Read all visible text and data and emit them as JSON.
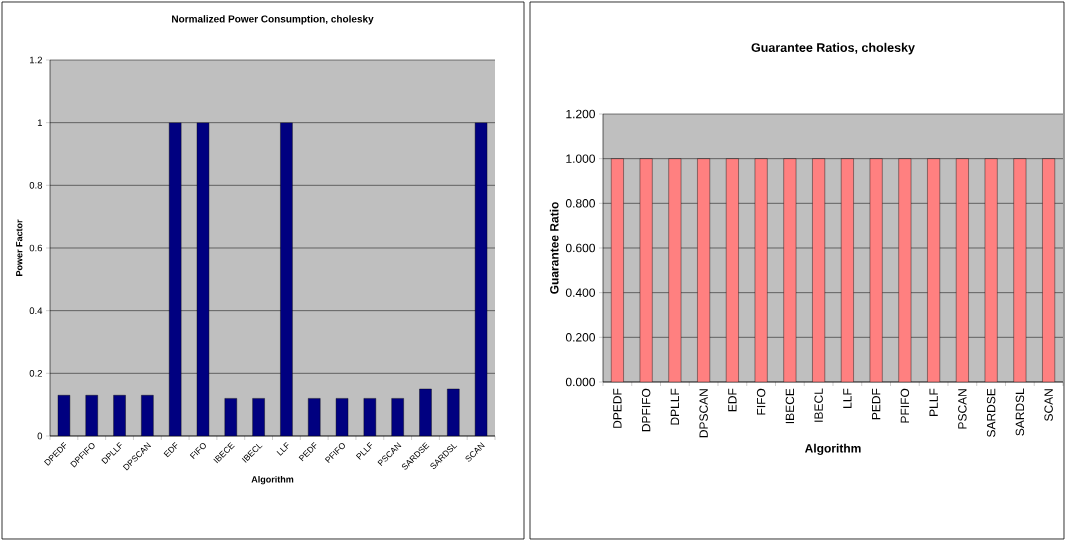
{
  "chart_data": [
    {
      "type": "bar",
      "title": "Normalized Power Consumption, cholesky",
      "xlabel": "Algorithm",
      "ylabel": "Power Factor",
      "categories": [
        "DPEDF",
        "DPFIFO",
        "DPLLF",
        "DPSCAN",
        "EDF",
        "FIFO",
        "IBECE",
        "IBECL",
        "LLF",
        "PEDF",
        "PFIFO",
        "PLLF",
        "PSCAN",
        "SARDSE",
        "SARDSL",
        "SCAN"
      ],
      "values": [
        0.13,
        0.13,
        0.13,
        0.13,
        1,
        1,
        0.12,
        0.12,
        1,
        0.12,
        0.12,
        0.12,
        0.12,
        0.15,
        0.15,
        1
      ],
      "color": "#000080",
      "ylim": [
        0,
        1.2
      ],
      "yticks": [
        0,
        0.2,
        0.4,
        0.6,
        0.8,
        1,
        1.2
      ],
      "grid": "y"
    },
    {
      "type": "bar",
      "title": "Guarantee Ratios, cholesky",
      "xlabel": "Algorithm",
      "ylabel": "Guarantee Ratio",
      "categories": [
        "DPEDF",
        "DPFIFO",
        "DPLLF",
        "DPSCAN",
        "EDF",
        "FIFO",
        "IBECE",
        "IBECL",
        "LLF",
        "PEDF",
        "PFIFO",
        "PLLF",
        "PSCAN",
        "SARDSE",
        "SARDSL",
        "SCAN"
      ],
      "values": [
        1,
        1,
        1,
        1,
        1,
        1,
        1,
        1,
        1,
        1,
        1,
        1,
        1,
        1,
        1,
        1
      ],
      "color": "#ff8080",
      "ylim": [
        0,
        1.2
      ],
      "yticks": [
        {
          "value": 0,
          "label": "0.000"
        },
        {
          "value": 0.2,
          "label": "0.200"
        },
        {
          "value": 0.4,
          "label": "0.400"
        },
        {
          "value": 0.6,
          "label": "0.600"
        },
        {
          "value": 0.8,
          "label": "0.800"
        },
        {
          "value": 1,
          "label": "1.000"
        },
        {
          "value": 1.2,
          "label": "1.200"
        }
      ],
      "grid": "y"
    }
  ]
}
